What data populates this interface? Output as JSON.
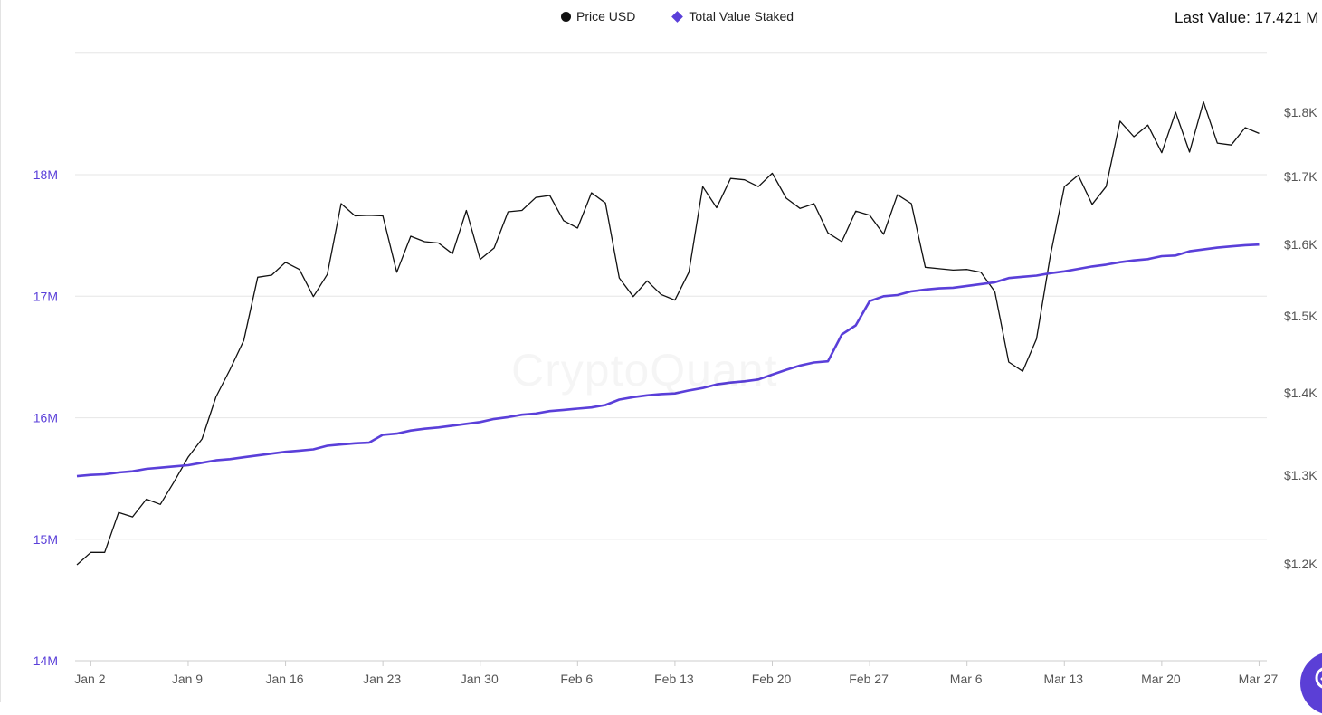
{
  "legend": {
    "price_label": "Price USD",
    "staked_label": "Total Value Staked"
  },
  "last_value": "Last Value: 17.421 M",
  "watermark": "CryptoQuant",
  "colors": {
    "price": "#111111",
    "staked": "#5a3fd9",
    "grid": "#e6e6e6",
    "axis_left_text": "#5a3fd9",
    "axis_right_text": "#555555"
  },
  "chart_data": {
    "type": "line",
    "x_start": "Jan 1",
    "x_end": "Mar 27",
    "x_tick_labels": [
      "Jan 2",
      "Jan 9",
      "Jan 16",
      "Jan 23",
      "Jan 30",
      "Feb 6",
      "Feb 13",
      "Feb 20",
      "Feb 27",
      "Mar 6",
      "Mar 13",
      "Mar 20",
      "Mar 27"
    ],
    "y_left": {
      "ticks": [
        "14M",
        "15M",
        "16M",
        "17M",
        "18M"
      ],
      "range": [
        14,
        19
      ],
      "unit": "M"
    },
    "y_right": {
      "ticks": [
        "$1.2K",
        "$1.3K",
        "$1.4K",
        "$1.5K",
        "$1.6K",
        "$1.7K",
        "$1.8K"
      ],
      "range": [
        1.2,
        1.8
      ],
      "unit": "K USD",
      "scale": "log"
    },
    "series": [
      {
        "name": "Price USD",
        "axis": "right",
        "values": [
          1.199,
          1.213,
          1.213,
          1.258,
          1.253,
          1.273,
          1.267,
          1.293,
          1.322,
          1.344,
          1.395,
          1.43,
          1.468,
          1.554,
          1.557,
          1.575,
          1.565,
          1.527,
          1.558,
          1.66,
          1.642,
          1.643,
          1.642,
          1.561,
          1.612,
          1.604,
          1.602,
          1.587,
          1.65,
          1.579,
          1.595,
          1.648,
          1.65,
          1.669,
          1.672,
          1.635,
          1.624,
          1.676,
          1.661,
          1.553,
          1.527,
          1.549,
          1.53,
          1.522,
          1.561,
          1.685,
          1.654,
          1.697,
          1.695,
          1.685,
          1.705,
          1.668,
          1.653,
          1.66,
          1.617,
          1.604,
          1.649,
          1.643,
          1.615,
          1.673,
          1.66,
          1.568,
          1.566,
          1.564,
          1.565,
          1.561,
          1.534,
          1.44,
          1.428,
          1.47,
          1.585,
          1.685,
          1.702,
          1.659,
          1.685,
          1.786,
          1.762,
          1.78,
          1.737,
          1.8,
          1.738,
          1.816,
          1.752,
          1.749,
          1.776,
          1.767
        ]
      },
      {
        "name": "Total Value Staked",
        "axis": "left",
        "values": [
          15.52,
          15.53,
          15.535,
          15.55,
          15.56,
          15.58,
          15.59,
          15.6,
          15.61,
          15.63,
          15.65,
          15.66,
          15.675,
          15.69,
          15.705,
          15.72,
          15.73,
          15.74,
          15.77,
          15.78,
          15.79,
          15.795,
          15.86,
          15.87,
          15.895,
          15.91,
          15.92,
          15.935,
          15.95,
          15.965,
          15.99,
          16.005,
          16.025,
          16.035,
          16.055,
          16.065,
          16.075,
          16.085,
          16.105,
          16.15,
          16.17,
          16.185,
          16.195,
          16.2,
          16.225,
          16.245,
          16.275,
          16.29,
          16.3,
          16.315,
          16.355,
          16.395,
          16.43,
          16.455,
          16.465,
          16.685,
          16.76,
          16.96,
          17.0,
          17.01,
          17.04,
          17.055,
          17.065,
          17.07,
          17.085,
          17.1,
          17.115,
          17.15,
          17.16,
          17.17,
          17.19,
          17.205,
          17.225,
          17.245,
          17.26,
          17.28,
          17.295,
          17.305,
          17.33,
          17.335,
          17.37,
          17.385,
          17.4,
          17.41,
          17.42,
          17.425
        ]
      }
    ],
    "grid": true,
    "legend_position": "top-center"
  }
}
